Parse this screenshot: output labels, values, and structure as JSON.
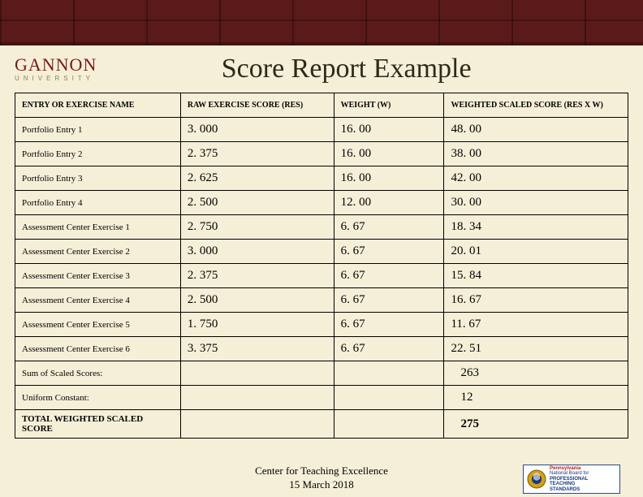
{
  "logo": {
    "main": "GANNON",
    "sub": "UNIVERSITY"
  },
  "title": "Score Report Example",
  "table": {
    "headers": {
      "entry": "ENTRY OR EXERCISE NAME",
      "res": "RAW EXERCISE SCORE (RES)",
      "weight": "WEIGHT (W)",
      "wss": "WEIGHTED SCALED SCORE (RES X W)"
    },
    "rows": [
      {
        "entry": "Portfolio Entry 1",
        "res": "3. 000",
        "w": "16. 00",
        "wss": "48. 00"
      },
      {
        "entry": "Portfolio Entry 2",
        "res": "2. 375",
        "w": "16. 00",
        "wss": "38. 00"
      },
      {
        "entry": "Portfolio Entry 3",
        "res": "2. 625",
        "w": "16. 00",
        "wss": "42. 00"
      },
      {
        "entry": "Portfolio Entry 4",
        "res": "2. 500",
        "w": "12. 00",
        "wss": "30. 00"
      },
      {
        "entry": "Assessment Center Exercise 1",
        "res": "2. 750",
        "w": "6. 67",
        "wss": "18. 34"
      },
      {
        "entry": "Assessment Center Exercise 2",
        "res": "3. 000",
        "w": "6. 67",
        "wss": "20. 01"
      },
      {
        "entry": "Assessment Center Exercise 3",
        "res": "2. 375",
        "w": "6. 67",
        "wss": "15. 84"
      },
      {
        "entry": "Assessment Center Exercise 4",
        "res": "2. 500",
        "w": "6. 67",
        "wss": "16. 67"
      },
      {
        "entry": "Assessment Center Exercise 5",
        "res": "1. 750",
        "w": "6. 67",
        "wss": "11. 67"
      },
      {
        "entry": "Assessment Center Exercise 6",
        "res": "3. 375",
        "w": "6. 67",
        "wss": "22. 51"
      }
    ],
    "summary": [
      {
        "label": "Sum of Scaled Scores:",
        "value": "263"
      },
      {
        "label": "Uniform Constant:",
        "value": "12"
      },
      {
        "label": "TOTAL WEIGHTED SCALED SCORE",
        "value": "275",
        "bold": true
      }
    ]
  },
  "footer": {
    "line1": "Center for Teaching Excellence",
    "line2": "15 March 2018"
  },
  "badge": {
    "line1": "Pennsylvania",
    "line2": "National Board for",
    "line3": "PROFESSIONAL",
    "line4": "TEACHING",
    "line5": "STANDARDS"
  }
}
